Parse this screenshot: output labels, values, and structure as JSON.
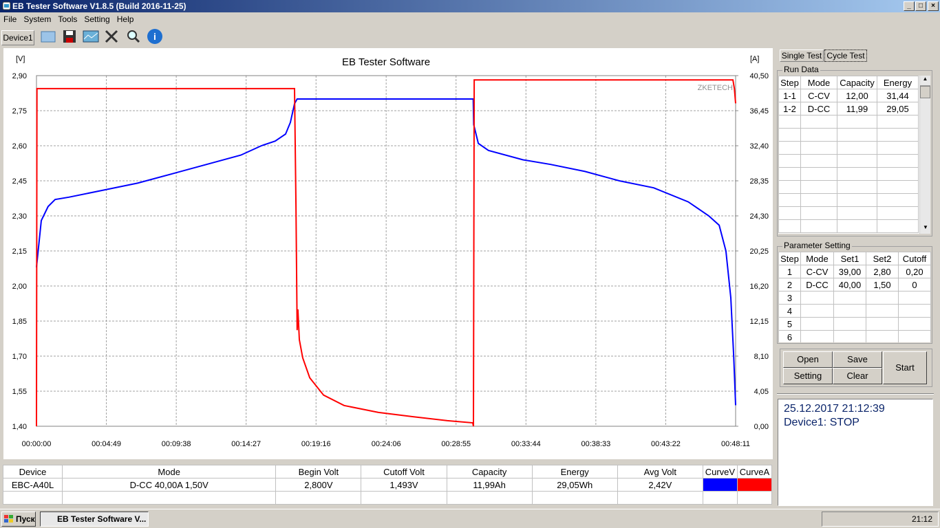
{
  "window": {
    "title": "EB Tester Software V1.8.5 (Build 2016-11-25)"
  },
  "menu": [
    "File",
    "System",
    "Tools",
    "Setting",
    "Help"
  ],
  "device_tab": "Device1",
  "chart_data": {
    "type": "line",
    "title": "EB Tester Software",
    "y_label": "[V]",
    "y2_label": "[A]",
    "watermark": "ZKETECH",
    "grid": true,
    "xlim": [
      0,
      2891
    ],
    "xticks": [
      {
        "value": 0,
        "label": "00:00:00"
      },
      {
        "value": 289,
        "label": "00:04:49"
      },
      {
        "value": 578,
        "label": "00:09:38"
      },
      {
        "value": 867,
        "label": "00:14:27"
      },
      {
        "value": 1156,
        "label": "00:19:16"
      },
      {
        "value": 1446,
        "label": "00:24:06"
      },
      {
        "value": 1735,
        "label": "00:28:55"
      },
      {
        "value": 2024,
        "label": "00:33:44"
      },
      {
        "value": 2313,
        "label": "00:38:33"
      },
      {
        "value": 2602,
        "label": "00:43:22"
      },
      {
        "value": 2891,
        "label": "00:48:11"
      }
    ],
    "ylim": [
      1.4,
      2.9
    ],
    "yticks": [
      {
        "value": 1.4,
        "label": "1,40"
      },
      {
        "value": 1.55,
        "label": "1,55"
      },
      {
        "value": 1.7,
        "label": "1,70"
      },
      {
        "value": 1.85,
        "label": "1,85"
      },
      {
        "value": 2.0,
        "label": "2,00"
      },
      {
        "value": 2.15,
        "label": "2,15"
      },
      {
        "value": 2.3,
        "label": "2,30"
      },
      {
        "value": 2.45,
        "label": "2,45"
      },
      {
        "value": 2.6,
        "label": "2,60"
      },
      {
        "value": 2.75,
        "label": "2,75"
      },
      {
        "value": 2.9,
        "label": "2,90"
      }
    ],
    "y2lim": [
      0,
      40.5
    ],
    "y2ticks": [
      {
        "value": 0,
        "label": "0,00"
      },
      {
        "value": 4.05,
        "label": "4,05"
      },
      {
        "value": 8.1,
        "label": "8,10"
      },
      {
        "value": 12.15,
        "label": "12,15"
      },
      {
        "value": 16.2,
        "label": "16,20"
      },
      {
        "value": 20.25,
        "label": "20,25"
      },
      {
        "value": 24.3,
        "label": "24,30"
      },
      {
        "value": 28.35,
        "label": "28,35"
      },
      {
        "value": 32.4,
        "label": "32,40"
      },
      {
        "value": 36.45,
        "label": "36,45"
      },
      {
        "value": 40.5,
        "label": "40,50"
      }
    ],
    "series": [
      {
        "name": "CurveV",
        "color": "#0000ff",
        "axis": "y",
        "x": [
          0,
          20,
          48,
          77,
          134,
          276,
          418,
          561,
          703,
          845,
          930,
          987,
          1030,
          1050,
          1067,
          1078,
          1806,
          1808,
          1827,
          1869,
          2011,
          2126,
          2268,
          2410,
          2552,
          2695,
          2780,
          2823,
          2851,
          2871,
          2883,
          2891
        ],
        "values": [
          2.08,
          2.28,
          2.34,
          2.37,
          2.38,
          2.41,
          2.44,
          2.48,
          2.52,
          2.56,
          2.6,
          2.62,
          2.65,
          2.7,
          2.78,
          2.8,
          2.8,
          2.69,
          2.61,
          2.58,
          2.54,
          2.52,
          2.49,
          2.45,
          2.42,
          2.36,
          2.3,
          2.26,
          2.15,
          1.95,
          1.7,
          1.49
        ]
      },
      {
        "name": "CurveA",
        "color": "#ff0000",
        "axis": "y2",
        "x": [
          0,
          2,
          1067,
          1073,
          1078,
          1081,
          1087,
          1101,
          1130,
          1187,
          1272,
          1414,
          1557,
          1699,
          1804,
          1807,
          1810,
          2880,
          2886,
          2891
        ],
        "values": [
          0,
          39,
          39,
          25.4,
          11.1,
          13.5,
          10.0,
          7.9,
          5.6,
          3.6,
          2.4,
          1.6,
          1.1,
          0.64,
          0.4,
          0,
          40,
          40,
          39,
          37.3
        ]
      }
    ]
  },
  "tabs": [
    "Single Test",
    "Cycle Test"
  ],
  "run_data": {
    "title": "Run Data",
    "columns": [
      "Step",
      "Mode",
      "Capacity",
      "Energy"
    ],
    "rows": [
      [
        "1-1",
        "C-CV",
        "12,00",
        "31,44"
      ],
      [
        "1-2",
        "D-CC",
        "11,99",
        "29,05"
      ]
    ]
  },
  "parameter_setting": {
    "title": "Parameter Setting",
    "columns": [
      "Step",
      "Mode",
      "Set1",
      "Set2",
      "Cutoff"
    ],
    "rows": [
      [
        "1",
        "C-CV",
        "39,00",
        "2,80",
        "0,20"
      ],
      [
        "2",
        "D-CC",
        "40,00",
        "1,50",
        "0"
      ],
      [
        "3"
      ],
      [
        "4"
      ],
      [
        "5"
      ],
      [
        "6"
      ]
    ]
  },
  "buttons": [
    "Open",
    "Save",
    "Setting",
    "Clear",
    "Start"
  ],
  "status": {
    "datetime": "25.12.2017 21:12:39",
    "state": "Device1: STOP"
  },
  "summary": {
    "columns": [
      "Device",
      "Mode",
      "Begin Volt",
      "Cutoff Volt",
      "Capacity",
      "Energy",
      "Avg Volt"
    ],
    "rows": [
      [
        "EBC-A40L",
        "D-CC  40,00A  1,50V",
        "2,800V",
        "1,493V",
        "11,99Ah",
        "29,05Wh",
        "2,42V"
      ]
    ]
  },
  "taskbar": {
    "start": "Пуск",
    "task": "EB Tester Software V...",
    "clock": "21:12"
  }
}
